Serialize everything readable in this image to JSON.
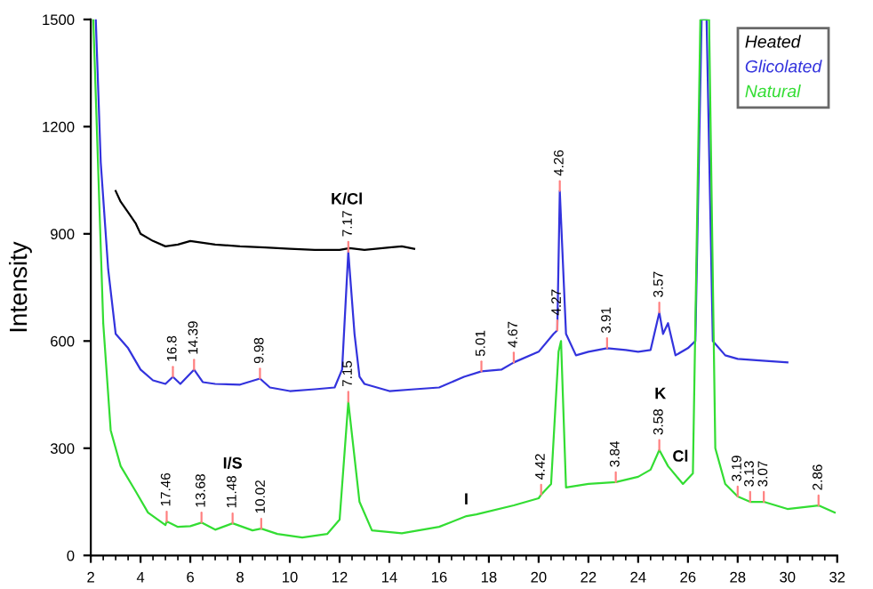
{
  "chart_data": {
    "type": "line",
    "ylabel": "Intensity",
    "xlim": [
      2,
      32
    ],
    "ylim": [
      0,
      1500
    ],
    "xticks": [
      2,
      4,
      6,
      8,
      10,
      12,
      14,
      16,
      18,
      20,
      22,
      24,
      26,
      28,
      30,
      32
    ],
    "yticks": [
      0,
      300,
      600,
      900,
      1200,
      1500
    ],
    "grid": false,
    "legend": "top right",
    "marker": "none",
    "line_style": "solid",
    "series": [
      {
        "name": "Heated",
        "color": "#000000",
        "x": [
          3,
          3.2,
          3.5,
          3.8,
          4,
          4.5,
          5,
          5.5,
          6,
          6.5,
          7,
          8,
          9,
          10,
          11,
          12,
          12.4,
          13,
          14,
          14.5,
          15
        ],
        "values": [
          1020,
          990,
          960,
          930,
          900,
          880,
          865,
          870,
          880,
          875,
          870,
          865,
          862,
          858,
          855,
          855,
          860,
          855,
          862,
          865,
          858
        ]
      },
      {
        "name": "Glicolated",
        "color": "#3333dd",
        "x": [
          2.2,
          2.4,
          2.7,
          3,
          3.5,
          4,
          4.5,
          5,
          5.3,
          5.6,
          6.15,
          6.5,
          7,
          8,
          8.8,
          9.2,
          10,
          11,
          11.8,
          12.1,
          12.35,
          12.6,
          12.8,
          13,
          14,
          15,
          16,
          17,
          17.7,
          18.5,
          19,
          20,
          20.6,
          20.75,
          20.85,
          21.1,
          21.5,
          22,
          22.75,
          23.5,
          24,
          24.5,
          24.85,
          25,
          25.2,
          25.5,
          26,
          26.3,
          26.55,
          26.75,
          27,
          27.5,
          28,
          29,
          30
        ],
        "values": [
          1500,
          1100,
          800,
          620,
          580,
          520,
          490,
          480,
          500,
          480,
          520,
          485,
          480,
          478,
          495,
          470,
          460,
          465,
          470,
          520,
          850,
          620,
          500,
          480,
          460,
          465,
          470,
          500,
          515,
          520,
          540,
          570,
          620,
          630,
          1020,
          620,
          560,
          570,
          580,
          575,
          570,
          575,
          680,
          620,
          650,
          560,
          580,
          600,
          1500,
          1500,
          600,
          560,
          550,
          545,
          540
        ]
      },
      {
        "name": "Natural",
        "color": "#33dd33",
        "x": [
          2.1,
          2.5,
          2.8,
          3.2,
          3.8,
          4.3,
          5,
          5.05,
          5.5,
          6,
          6.45,
          7,
          7.7,
          8.5,
          8.85,
          9.5,
          10.5,
          11.5,
          12,
          12.35,
          12.8,
          13.3,
          14.5,
          16,
          17.1,
          17.5,
          19,
          20,
          20.1,
          20.5,
          20.8,
          20.9,
          21.1,
          22,
          23.1,
          24,
          24.5,
          24.85,
          25.2,
          25.8,
          26.2,
          26.5,
          26.85,
          27.1,
          27.5,
          28,
          28.5,
          29.05,
          30,
          31.25,
          31.9
        ],
        "values": [
          1500,
          650,
          350,
          250,
          180,
          120,
          85,
          95,
          80,
          82,
          92,
          72,
          90,
          70,
          75,
          60,
          50,
          60,
          100,
          430,
          150,
          70,
          62,
          80,
          110,
          115,
          140,
          160,
          170,
          200,
          570,
          600,
          190,
          200,
          205,
          220,
          240,
          295,
          250,
          200,
          230,
          1500,
          1500,
          300,
          200,
          165,
          150,
          150,
          130,
          140,
          120
        ]
      }
    ],
    "annotations": [
      "K/Cl",
      "I/S",
      "I",
      "K",
      "Cl",
      {
        "text": "16.8",
        "x": 5.3,
        "y": 500
      },
      {
        "text": "14.39",
        "x": 6.15,
        "y": 520
      },
      {
        "text": "9.98",
        "x": 8.8,
        "y": 495
      },
      {
        "text": "7.17",
        "x": 12.35,
        "y": 850
      },
      {
        "text": "5.01",
        "x": 17.7,
        "y": 515
      },
      {
        "text": "4.67",
        "x": 19,
        "y": 540
      },
      {
        "text": "4.27",
        "x": 20.75,
        "y": 630
      },
      {
        "text": "4.26",
        "x": 20.85,
        "y": 1020
      },
      {
        "text": "3.91",
        "x": 22.75,
        "y": 580
      },
      {
        "text": "3.57",
        "x": 24.85,
        "y": 680
      },
      {
        "text": "17.46",
        "x": 5.05,
        "y": 95
      },
      {
        "text": "13.68",
        "x": 6.45,
        "y": 92
      },
      {
        "text": "11.48",
        "x": 7.7,
        "y": 90
      },
      {
        "text": "10.02",
        "x": 8.85,
        "y": 75
      },
      {
        "text": "7.15",
        "x": 12.35,
        "y": 430
      },
      {
        "text": "4.42",
        "x": 20.1,
        "y": 170
      },
      {
        "text": "3.84",
        "x": 23.1,
        "y": 205
      },
      {
        "text": "3.58",
        "x": 24.85,
        "y": 295
      },
      {
        "text": "3.19",
        "x": 28,
        "y": 165
      },
      {
        "text": "3.13",
        "x": 28.5,
        "y": 150
      },
      {
        "text": "3.07",
        "x": 29.05,
        "y": 150
      },
      {
        "text": "2.86",
        "x": 31.25,
        "y": 140
      }
    ]
  }
}
